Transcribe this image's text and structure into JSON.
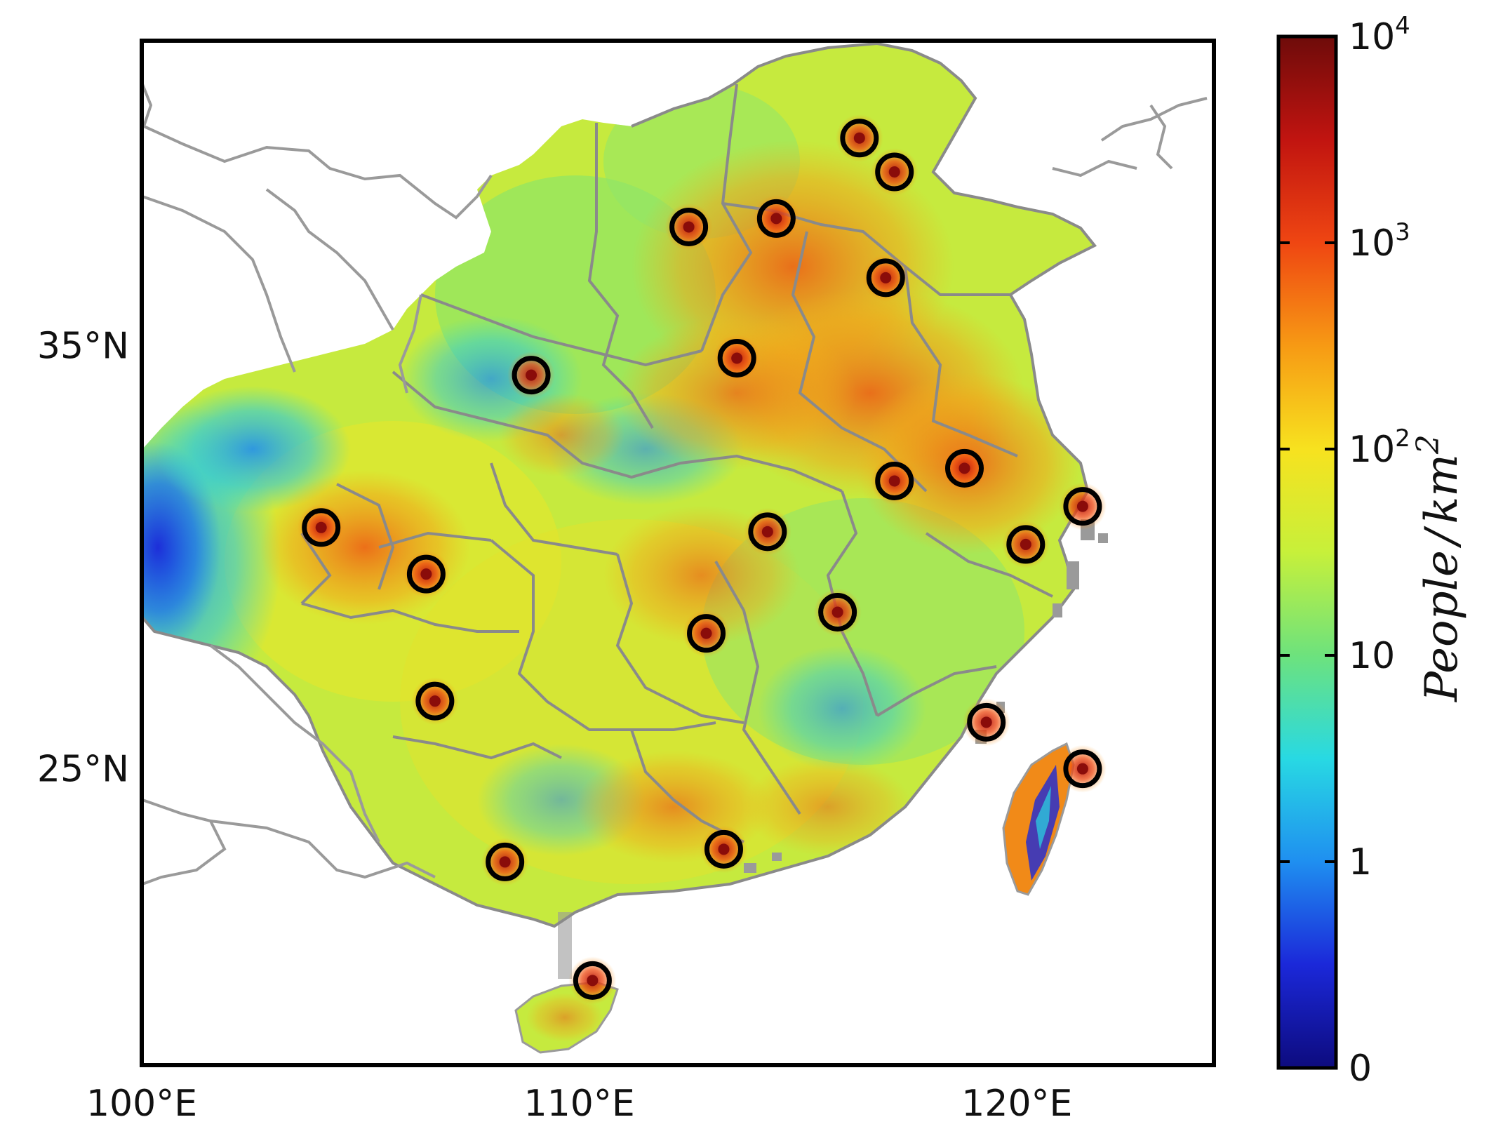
{
  "map": {
    "lat_ticks": [
      "35°N",
      "25°N"
    ],
    "lon_ticks": [
      "100°E",
      "110°E",
      "120°E"
    ],
    "lat_values": [
      35,
      25
    ],
    "lon_values": [
      100,
      110,
      120
    ],
    "extent": {
      "lon_min": 100,
      "lon_max": 124.5,
      "lat_min": 18,
      "lat_max": 42.2
    },
    "colors": {
      "frame": "#000000",
      "boundary": "#8a8a8a",
      "outside_boundary": "#9a9a9a",
      "city_marker": "#000000"
    }
  },
  "colorbar": {
    "label_main": "People",
    "label_sep": "/",
    "label_unit": "km",
    "label_exp": "2",
    "tick_labels": [
      {
        "base": "10",
        "exp": "4"
      },
      {
        "base": "10",
        "exp": "3"
      },
      {
        "base": "10",
        "exp": "2"
      },
      {
        "base": "10",
        "exp": ""
      },
      {
        "base": "1",
        "exp": ""
      },
      {
        "base": "0",
        "exp": ""
      }
    ],
    "stops": [
      "#0d0b7e",
      "#1b28d9",
      "#1f8ff0",
      "#28d9e3",
      "#6de27d",
      "#c7f03a",
      "#f7e21f",
      "#f79a14",
      "#ef4612",
      "#c11410",
      "#6e0b0a"
    ]
  },
  "cities": [
    {
      "lon": 116.4,
      "lat": 39.9
    },
    {
      "lon": 117.2,
      "lat": 39.1
    },
    {
      "lon": 114.5,
      "lat": 38.0
    },
    {
      "lon": 112.5,
      "lat": 37.8
    },
    {
      "lon": 117.0,
      "lat": 36.6
    },
    {
      "lon": 113.6,
      "lat": 34.7
    },
    {
      "lon": 108.9,
      "lat": 34.3
    },
    {
      "lon": 118.8,
      "lat": 32.1
    },
    {
      "lon": 117.2,
      "lat": 31.8
    },
    {
      "lon": 121.5,
      "lat": 31.2
    },
    {
      "lon": 120.2,
      "lat": 30.3
    },
    {
      "lon": 114.3,
      "lat": 30.6
    },
    {
      "lon": 104.1,
      "lat": 30.7
    },
    {
      "lon": 106.5,
      "lat": 29.6
    },
    {
      "lon": 115.9,
      "lat": 28.7
    },
    {
      "lon": 112.9,
      "lat": 28.2
    },
    {
      "lon": 106.7,
      "lat": 26.6
    },
    {
      "lon": 119.3,
      "lat": 26.1
    },
    {
      "lon": 121.5,
      "lat": 25.0
    },
    {
      "lon": 113.3,
      "lat": 23.1
    },
    {
      "lon": 108.3,
      "lat": 22.8
    },
    {
      "lon": 110.3,
      "lat": 20.0
    }
  ]
}
